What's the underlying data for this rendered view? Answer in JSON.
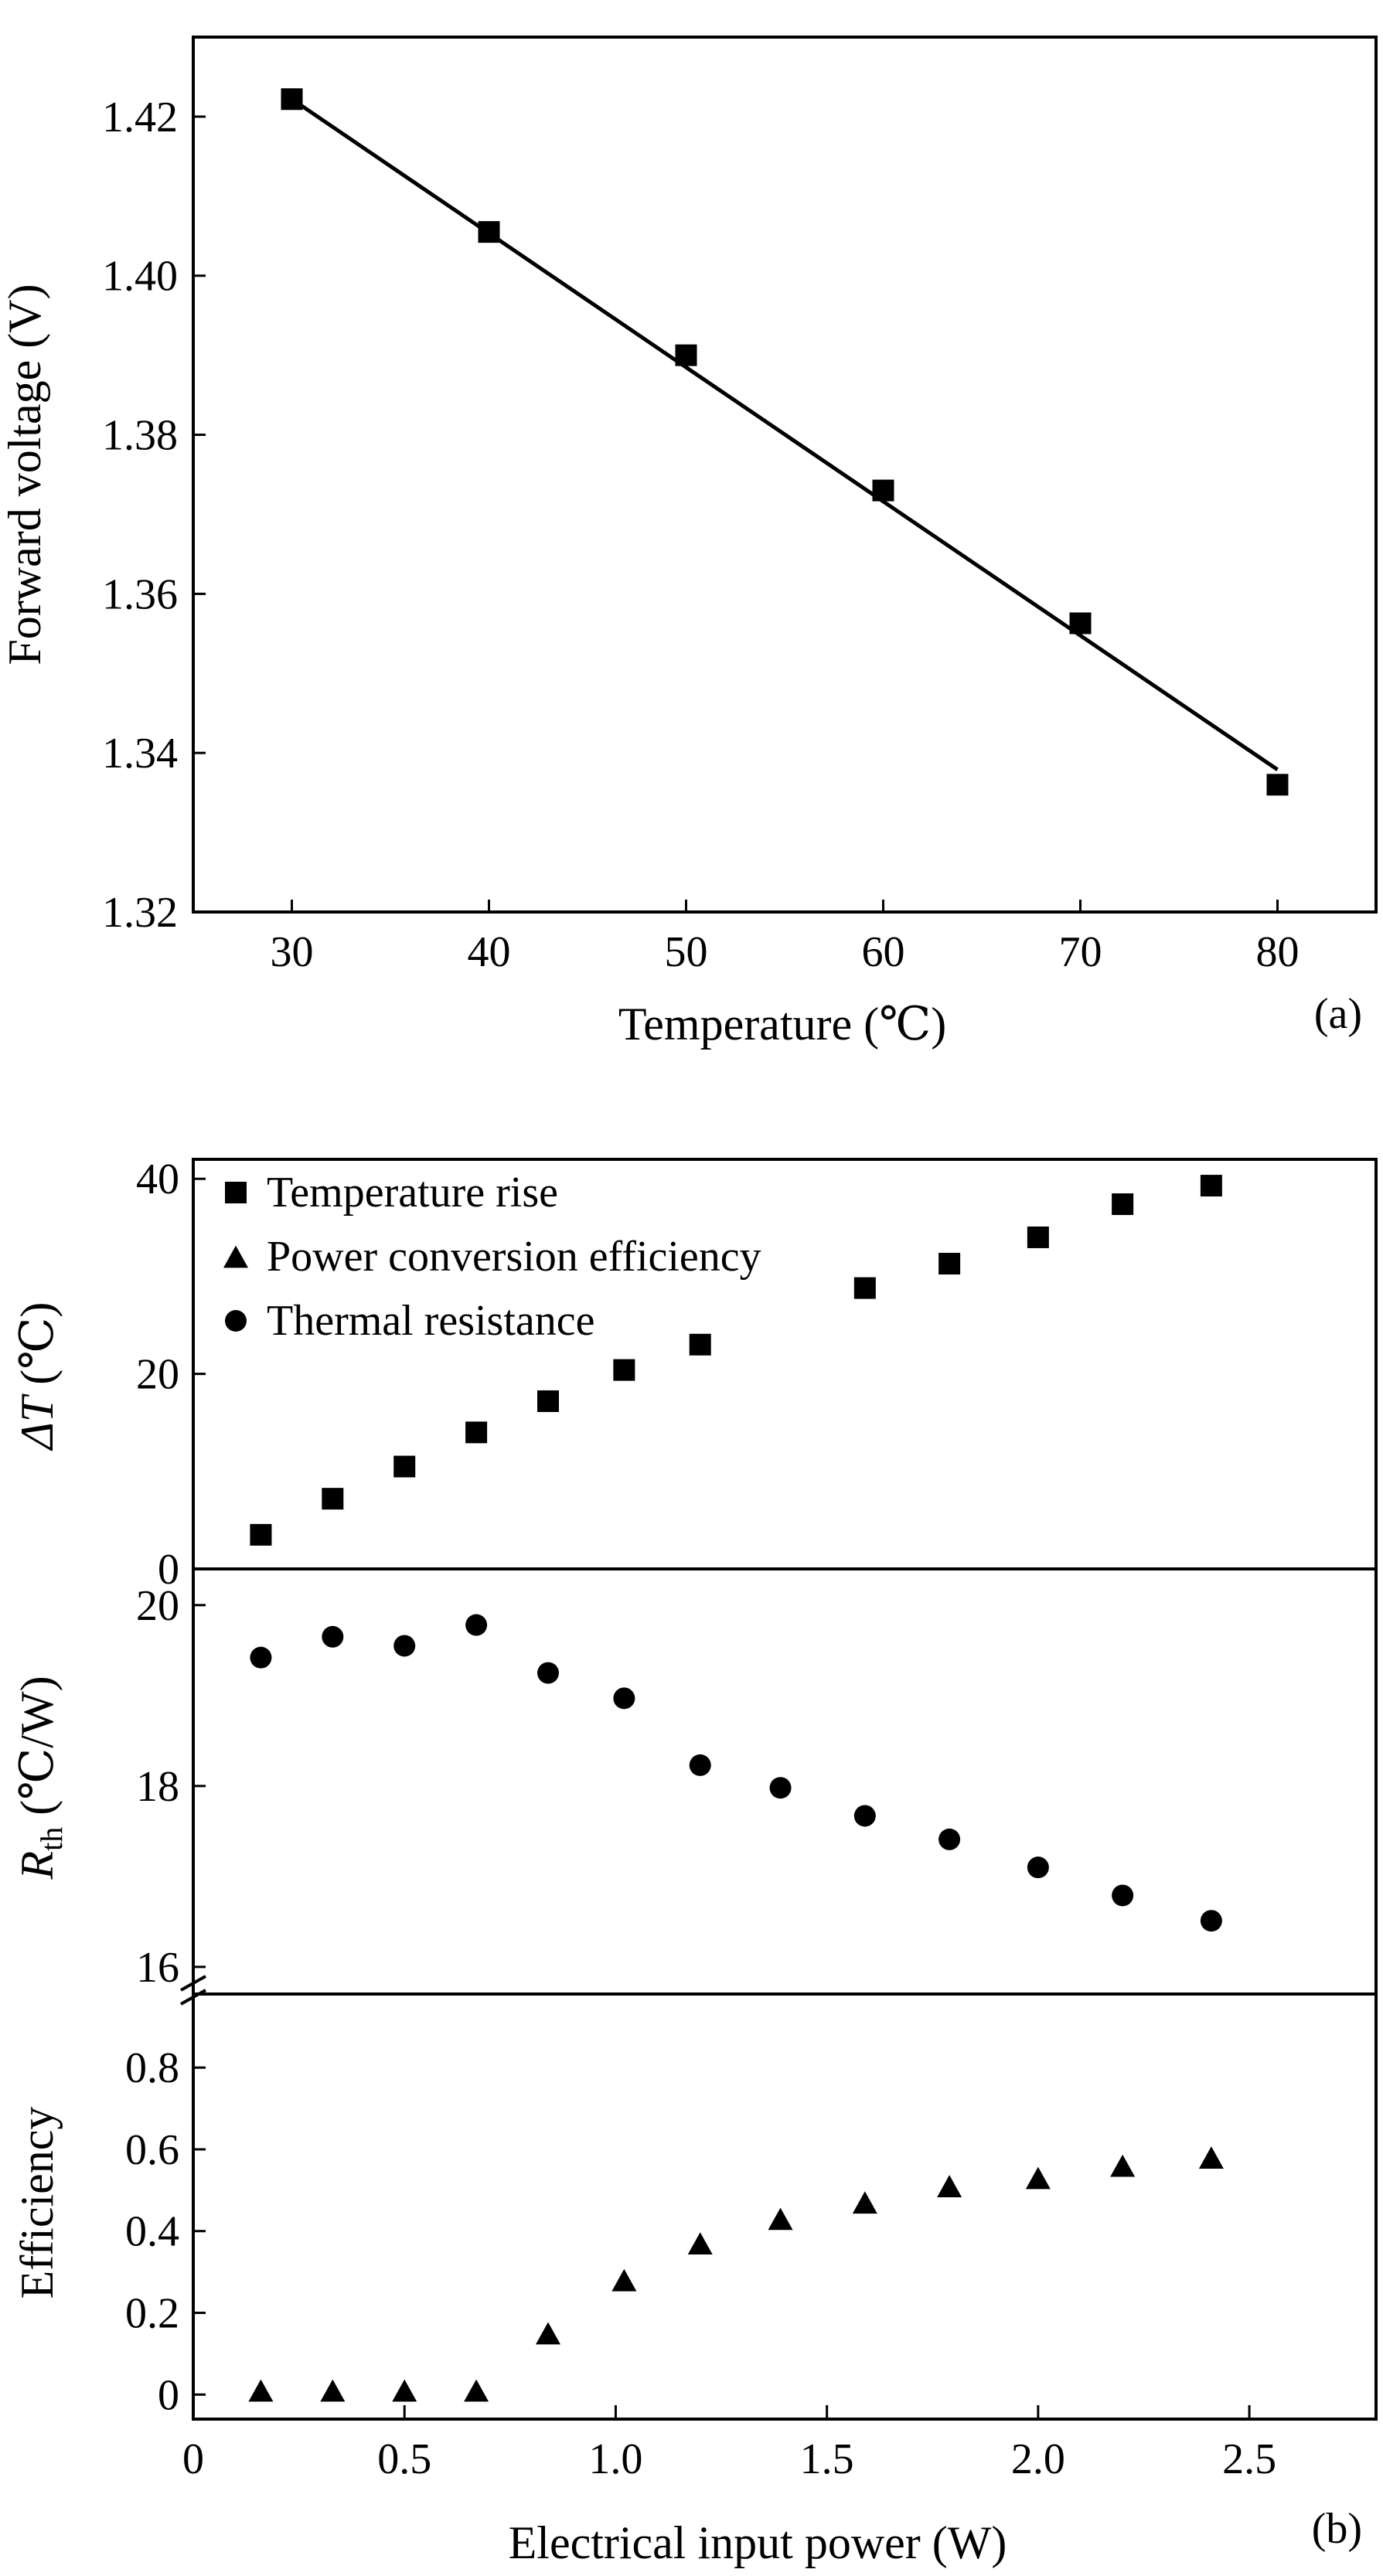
{
  "chart_data": [
    {
      "panel_label": "(a)",
      "type": "scatter",
      "xlabel": "Temperature (℃)",
      "ylabel": "Forward voltage (V)",
      "xlim": [
        25,
        85
      ],
      "ylim": [
        1.32,
        1.43
      ],
      "xticks": [
        30,
        40,
        50,
        60,
        70,
        80
      ],
      "yticks": [
        1.32,
        1.34,
        1.36,
        1.38,
        1.4,
        1.42
      ],
      "ytick_labels": [
        "1.32",
        "1.34",
        "1.36",
        "1.38",
        "1.40",
        "1.42"
      ],
      "grid": false,
      "series": [
        {
          "marker": "square",
          "x": [
            30,
            40,
            50,
            60,
            70,
            80
          ],
          "y": [
            1.4222,
            1.4055,
            1.39,
            1.373,
            1.3563,
            1.336
          ]
        }
      ],
      "fit_line": {
        "x": [
          30,
          80
        ],
        "y": [
          1.4222,
          1.3379
        ]
      }
    },
    {
      "panel_label": "(b)",
      "type": "scatter",
      "xlabel": "Electrical input power (W)",
      "xlim": [
        0,
        2.8
      ],
      "xticks": [
        0,
        0.5,
        1.0,
        1.5,
        2.0,
        2.5
      ],
      "xtick_labels": [
        "0",
        "0.5",
        "1.0",
        "1.5",
        "2.0",
        "2.5"
      ],
      "grid": false,
      "legend": {
        "placement": "top-left",
        "entries": [
          {
            "marker": "square",
            "label": "Temperature rise"
          },
          {
            "marker": "triangle",
            "label": "Power conversion efficiency"
          },
          {
            "marker": "circle",
            "label": "Thermal resistance"
          }
        ]
      },
      "subplots": {
        "delta_t": {
          "ylabel_symbol": "ΔT",
          "ylabel_unit": " (℃)",
          "ylim": [
            0,
            42
          ],
          "yticks": [
            0,
            20,
            40
          ],
          "ytick_labels": [
            "0",
            "20",
            "40"
          ],
          "series": {
            "name": "Temperature rise",
            "marker": "square",
            "x": [
              0.16,
              0.33,
              0.5,
              0.67,
              0.84,
              1.02,
              1.2,
              1.59,
              1.79,
              2.0,
              2.2,
              2.41
            ],
            "y": [
              3.5,
              7.2,
              10.5,
              14.0,
              17.2,
              20.4,
              23.0,
              28.8,
              31.3,
              34.0,
              37.4,
              39.3
            ]
          }
        },
        "r_th": {
          "ylabel_symbol": "R",
          "ylabel_sub": "th",
          "ylabel_unit": " (℃/W)",
          "ylim": [
            15.7,
            20.4
          ],
          "yticks": [
            16,
            18,
            20
          ],
          "ytick_labels": [
            "16",
            "18",
            "20"
          ],
          "axis_break": true,
          "series": {
            "name": "Thermal resistance",
            "marker": "circle",
            "x": [
              0.16,
              0.33,
              0.5,
              0.67,
              0.84,
              1.02,
              1.2,
              1.39,
              1.59,
              1.79,
              2.0,
              2.2,
              2.41
            ],
            "y": [
              19.42,
              19.65,
              19.55,
              19.78,
              19.25,
              18.97,
              18.23,
              17.98,
              17.67,
              17.41,
              17.1,
              16.79,
              16.51
            ]
          }
        },
        "efficiency": {
          "ylabel": "Efficiency",
          "ylim": [
            -0.06,
            0.98
          ],
          "yticks": [
            0,
            0.2,
            0.4,
            0.6,
            0.8
          ],
          "ytick_labels": [
            "0",
            "0.2",
            "0.4",
            "0.6",
            "0.8"
          ],
          "series": {
            "name": "Power conversion efficiency",
            "marker": "triangle",
            "x": [
              0.16,
              0.33,
              0.5,
              0.67,
              0.84,
              1.02,
              1.2,
              1.39,
              1.59,
              1.79,
              2.0,
              2.2,
              2.41
            ],
            "y": [
              0.01,
              0.01,
              0.01,
              0.01,
              0.15,
              0.28,
              0.37,
              0.43,
              0.47,
              0.51,
              0.53,
              0.56,
              0.58
            ]
          }
        }
      }
    }
  ]
}
